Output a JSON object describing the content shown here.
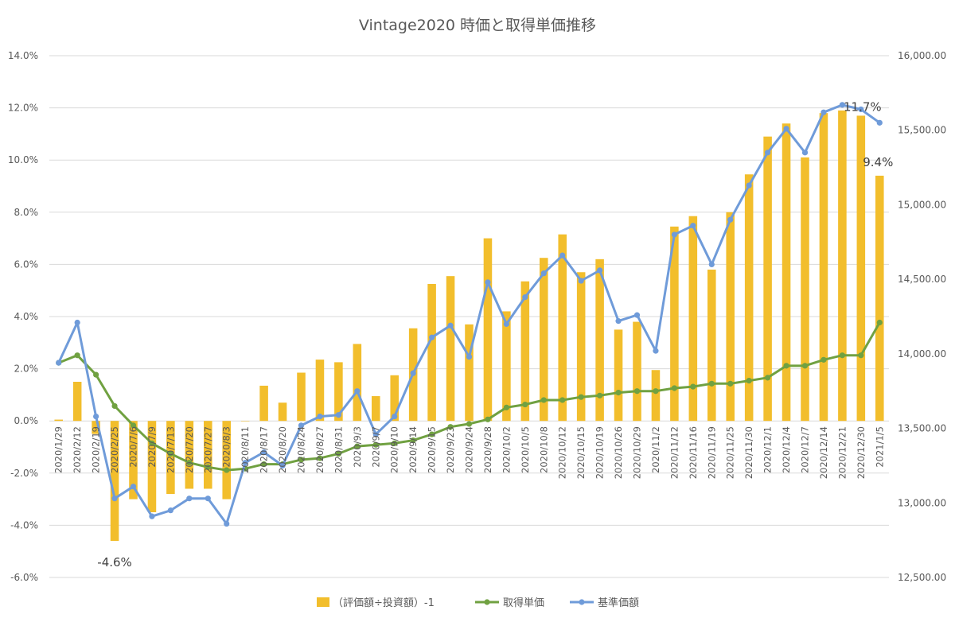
{
  "chart_data": {
    "type": "bar+line",
    "title": "Vintage2020 時価と取得単価推移",
    "categories": [
      "2020/1/29",
      "2020/2/12",
      "2020/2/19",
      "2020/2/25",
      "2020/7/6",
      "2020/7/9",
      "2020/7/13",
      "2020/7/20",
      "2020/7/27",
      "2020/8/3",
      "2020/8/11",
      "2020/8/17",
      "2020/8/20",
      "2020/8/24",
      "2020/8/27",
      "2020/8/31",
      "2020/9/3",
      "2020/9/7",
      "2020/9/10",
      "2020/9/14",
      "2020/9/15",
      "2020/9/23",
      "2020/9/24",
      "2020/9/28",
      "2020/10/2",
      "2020/10/5",
      "2020/10/8",
      "2020/10/12",
      "2020/10/15",
      "2020/10/19",
      "2020/10/26",
      "2020/10/29",
      "2020/11/2",
      "2020/11/12",
      "2020/11/16",
      "2020/11/19",
      "2020/11/25",
      "2020/11/30",
      "2020/12/1",
      "2020/12/4",
      "2020/12/7",
      "2020/12/14",
      "2020/12/21",
      "2020/12/30",
      "2021/1/5"
    ],
    "left_axis": {
      "min": -6.0,
      "max": 14.0,
      "step": 2.0,
      "tick_labels": [
        "-6.0%",
        "-4.0%",
        "-2.0%",
        "0.0%",
        "2.0%",
        "4.0%",
        "6.0%",
        "8.0%",
        "10.0%",
        "12.0%",
        "14.0%"
      ]
    },
    "right_axis": {
      "min": 12500,
      "max": 16000,
      "step": 500,
      "tick_labels": [
        "12,500.00",
        "13,000.00",
        "13,500.00",
        "14,000.00",
        "14,500.00",
        "15,000.00",
        "15,500.00",
        "16,000.00"
      ]
    },
    "series": [
      {
        "name": "（評価額÷投資額）-1",
        "kind": "bar",
        "axis": "left",
        "color": "#F2BE2C",
        "values": [
          0.05,
          1.5,
          -0.5,
          -4.6,
          -3.0,
          -3.5,
          -2.8,
          -2.6,
          -2.6,
          -3.0,
          0.0,
          1.35,
          0.7,
          1.85,
          2.35,
          2.25,
          2.95,
          0.95,
          1.75,
          3.55,
          5.25,
          5.55,
          3.7,
          7.0,
          4.2,
          5.35,
          6.25,
          7.15,
          5.7,
          6.2,
          3.5,
          3.8,
          1.95,
          7.45,
          7.85,
          5.8,
          8.0,
          9.45,
          10.9,
          11.4,
          10.1,
          11.8,
          11.9,
          11.7,
          9.4
        ]
      },
      {
        "name": "取得単価",
        "kind": "line",
        "axis": "right",
        "color": "#70A141",
        "values": [
          13940,
          13990,
          13860,
          13650,
          13520,
          13400,
          13330,
          13270,
          13240,
          13220,
          13230,
          13260,
          13260,
          13290,
          13300,
          13330,
          13380,
          13390,
          13400,
          13420,
          13460,
          13510,
          13530,
          13560,
          13640,
          13660,
          13690,
          13690,
          13710,
          13720,
          13740,
          13750,
          13750,
          13770,
          13780,
          13800,
          13800,
          13820,
          13840,
          13920,
          13920,
          13960,
          13990,
          13990,
          14210
        ]
      },
      {
        "name": "基準価額",
        "kind": "line",
        "axis": "right",
        "color": "#6F9BD9",
        "values": [
          13940,
          14210,
          13580,
          13030,
          13110,
          12910,
          12950,
          13030,
          13030,
          12860,
          13270,
          13340,
          13250,
          13520,
          13580,
          13590,
          13750,
          13460,
          13580,
          13870,
          14110,
          14190,
          13980,
          14480,
          14200,
          14380,
          14540,
          14660,
          14490,
          14560,
          14220,
          14260,
          14020,
          14800,
          14860,
          14600,
          14900,
          15130,
          15350,
          15510,
          15350,
          15620,
          15670,
          15640,
          15550
        ]
      }
    ],
    "annotations": [
      {
        "text": "-4.6%",
        "category": "2020/2/25",
        "series": "（評価額÷投資額）-1",
        "value": -4.6
      },
      {
        "text": "11.7%",
        "category": "2020/12/30",
        "series": "（評価額÷投資額）-1",
        "value": 11.7
      },
      {
        "text": "9.4%",
        "category": "2021/1/5",
        "series": "（評価額÷投資額）-1",
        "value": 9.4
      }
    ],
    "grid": true,
    "legend_position": "bottom"
  }
}
